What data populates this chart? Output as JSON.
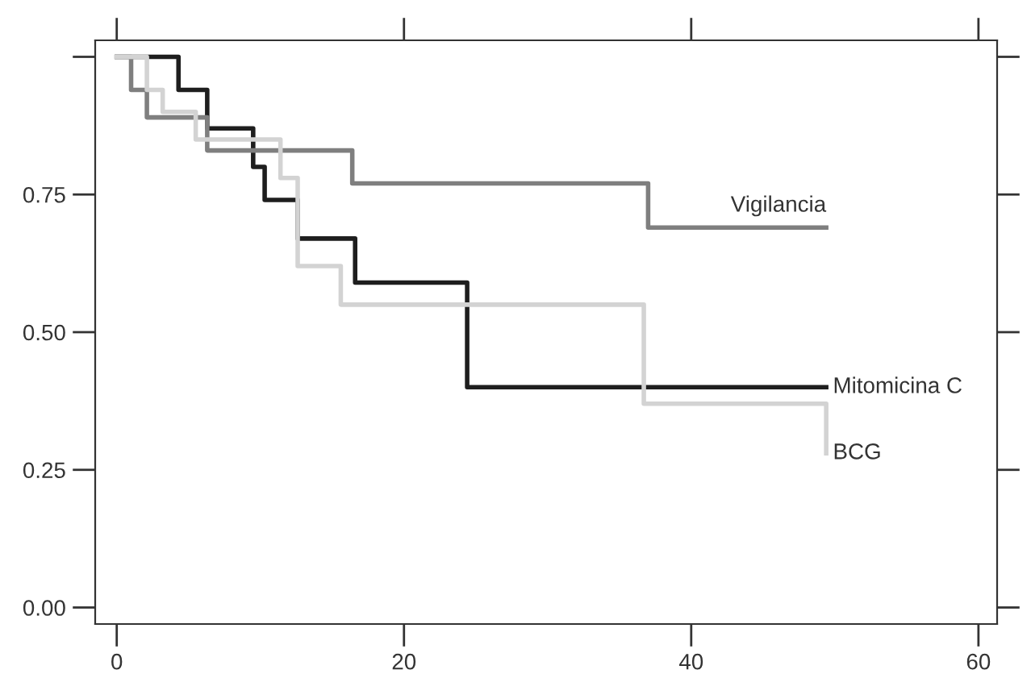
{
  "chart_data": {
    "type": "step",
    "series": [
      {
        "name": "Mitomicina C",
        "color": "#1e1e1e",
        "x": [
          0,
          4.3,
          6.3,
          9.5,
          10.3,
          12.6,
          16.6,
          24.4,
          49.4
        ],
        "values": [
          1.0,
          0.94,
          0.87,
          0.8,
          0.74,
          0.67,
          0.59,
          0.4,
          0.4
        ]
      },
      {
        "name": "Vigilancia",
        "color": "#7f7f7f",
        "x": [
          0,
          1.0,
          2.1,
          6.3,
          16.4,
          37.0,
          49.4
        ],
        "values": [
          1.0,
          0.94,
          0.89,
          0.83,
          0.77,
          0.69,
          0.69
        ]
      },
      {
        "name": "BCG",
        "color": "#d3d3d3",
        "x": [
          0,
          2.1,
          3.2,
          5.5,
          11.4,
          12.6,
          15.6,
          36.7,
          49.4,
          49.4
        ],
        "values": [
          1.0,
          0.94,
          0.9,
          0.85,
          0.78,
          0.62,
          0.55,
          0.37,
          0.37,
          0.28
        ]
      }
    ],
    "xlim": [
      -1.5,
      61.3
    ],
    "ylim": [
      -0.03,
      1.03
    ],
    "xticks": [
      0,
      20,
      40,
      60
    ],
    "yticks": [
      {
        "value": 0,
        "label": "0.00"
      },
      {
        "value": 0.25,
        "label": "0.25"
      },
      {
        "value": 0.5,
        "label": "0.50"
      },
      {
        "value": 0.75,
        "label": "0.75"
      },
      {
        "value": 1.0,
        "label": null
      }
    ],
    "grid": false,
    "legend": false
  }
}
